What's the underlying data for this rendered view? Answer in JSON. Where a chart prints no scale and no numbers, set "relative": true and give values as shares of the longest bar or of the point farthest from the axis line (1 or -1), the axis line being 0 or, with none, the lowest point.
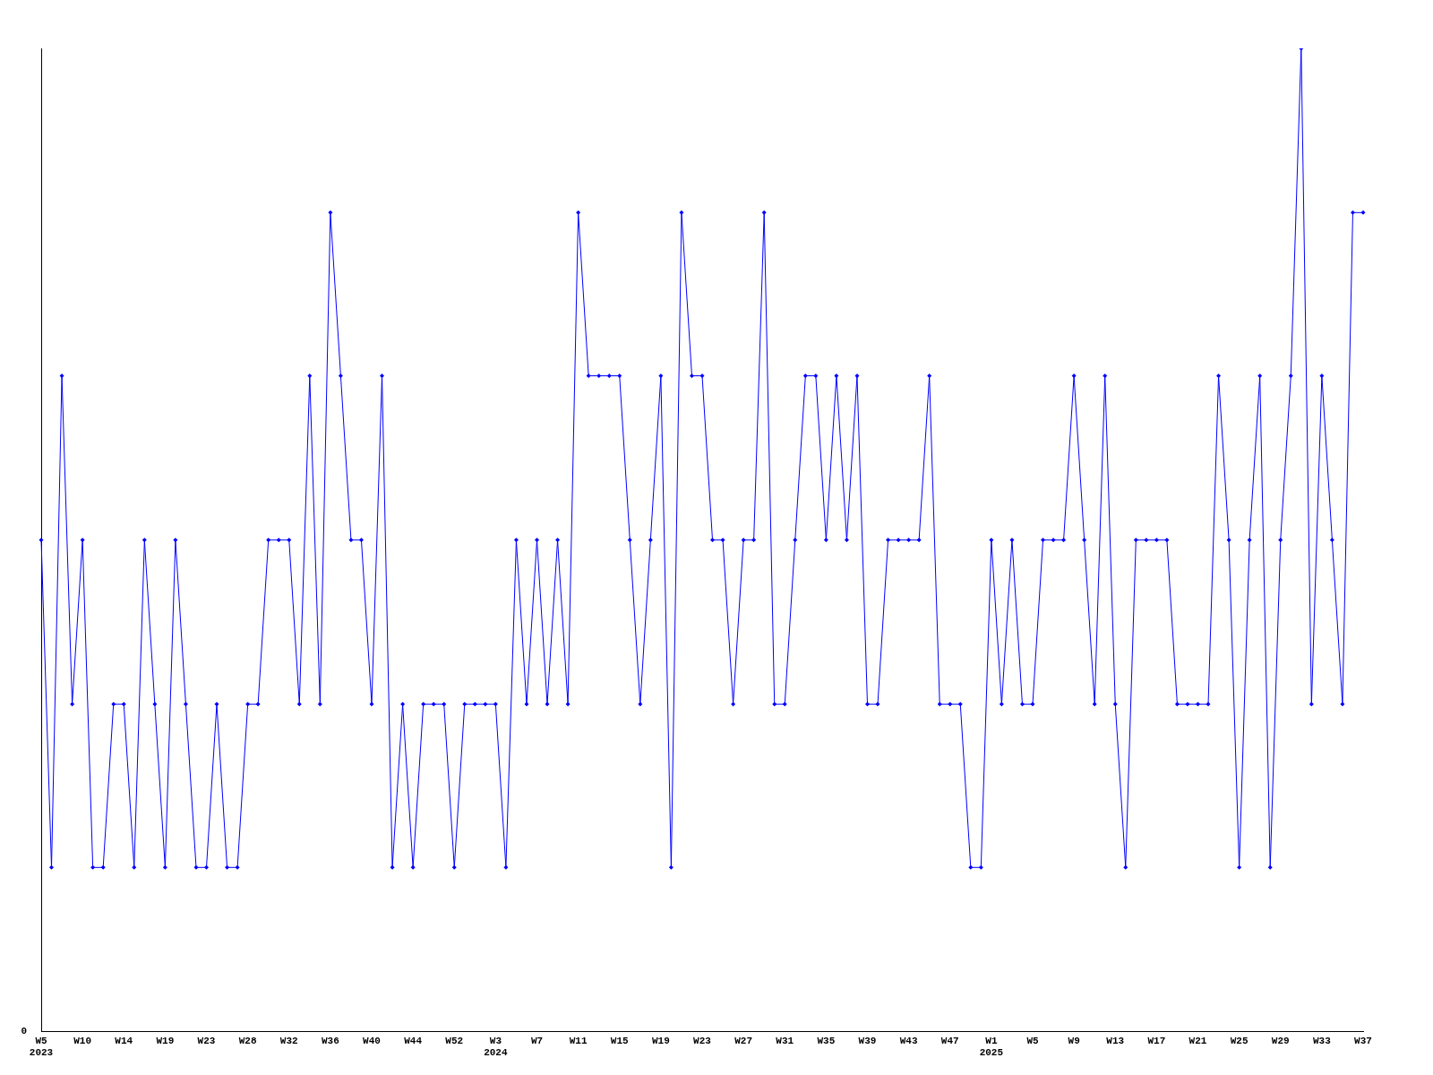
{
  "chart_data": {
    "type": "line",
    "relative": true,
    "marker": "diamond",
    "line_style": "solid",
    "legend": false,
    "grid": false,
    "tick_labels": "x",
    "categories": [
      "W5\n2023",
      null,
      null,
      null,
      "W10",
      null,
      null,
      null,
      "W14",
      null,
      null,
      null,
      "W19",
      null,
      null,
      null,
      "W23",
      null,
      null,
      null,
      "W28",
      null,
      null,
      null,
      "W32",
      null,
      null,
      null,
      "W36",
      null,
      null,
      null,
      "W40",
      null,
      null,
      null,
      "W44",
      null,
      null,
      null,
      "W52",
      null,
      null,
      null,
      "W3\n2024",
      null,
      null,
      null,
      "W7",
      null,
      null,
      null,
      "W11",
      null,
      null,
      null,
      "W15",
      null,
      null,
      null,
      "W19",
      null,
      null,
      null,
      "W23",
      null,
      null,
      null,
      "W27",
      null,
      null,
      null,
      "W31",
      null,
      null,
      null,
      "W35",
      null,
      null,
      null,
      "W39",
      null,
      null,
      null,
      "W43",
      null,
      null,
      null,
      "W47",
      null,
      null,
      null,
      "W1\n2025",
      null,
      null,
      null,
      "W5",
      null,
      null,
      null,
      "W9",
      null,
      null,
      null,
      "W13",
      null,
      null,
      null,
      "W17",
      null,
      null,
      null,
      "W21",
      null,
      null,
      null,
      "W25",
      null,
      null,
      null,
      "W29",
      null,
      null,
      null,
      "W33",
      null,
      null,
      null,
      "W37"
    ],
    "series": [
      {
        "color": "#0000ff",
        "values": [
          0.5,
          0.167,
          0.667,
          0.333,
          0.5,
          0.167,
          0.167,
          0.333,
          0.333,
          0.167,
          0.5,
          0.333,
          0.167,
          0.5,
          0.333,
          0.167,
          0.167,
          0.333,
          0.167,
          0.167,
          0.333,
          0.333,
          0.5,
          0.5,
          0.5,
          0.333,
          0.667,
          0.333,
          0.833,
          0.667,
          0.5,
          0.5,
          0.333,
          0.667,
          0.167,
          0.333,
          0.167,
          0.333,
          0.333,
          0.333,
          0.167,
          0.333,
          0.333,
          0.333,
          0.333,
          0.167,
          0.5,
          0.333,
          0.5,
          0.333,
          0.5,
          0.333,
          0.833,
          0.667,
          0.667,
          0.667,
          0.667,
          0.5,
          0.333,
          0.5,
          0.667,
          0.167,
          0.833,
          0.667,
          0.667,
          0.5,
          0.5,
          0.333,
          0.5,
          0.5,
          0.833,
          0.333,
          0.333,
          0.5,
          0.667,
          0.667,
          0.5,
          0.667,
          0.5,
          0.667,
          0.333,
          0.333,
          0.5,
          0.5,
          0.5,
          0.5,
          0.667,
          0.333,
          0.333,
          0.333,
          0.167,
          0.167,
          0.5,
          0.333,
          0.5,
          0.333,
          0.333,
          0.5,
          0.5,
          0.5,
          0.667,
          0.5,
          0.333,
          0.667,
          0.333,
          0.167,
          0.5,
          0.5,
          0.5,
          0.5,
          0.333,
          0.333,
          0.333,
          0.333,
          0.667,
          0.5,
          0.167,
          0.5,
          0.667,
          0.167,
          0.5,
          0.667,
          1,
          0.333,
          0.667,
          0.5,
          0.333,
          0.833,
          0.833
        ]
      }
    ],
    "annotations": [
      "0"
    ]
  }
}
